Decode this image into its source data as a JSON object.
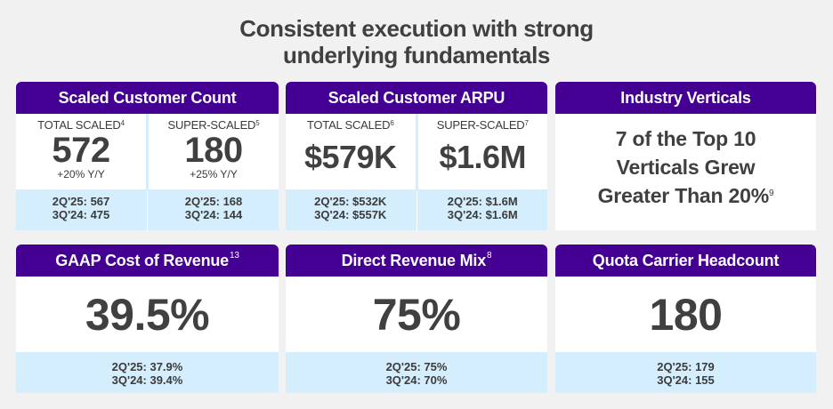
{
  "title": {
    "line1": "Consistent execution with strong",
    "line2": "underlying fundamentals"
  },
  "colors": {
    "header_purple": "#430092",
    "band_blue": "#d4eefd",
    "text_dark": "#404040",
    "background": "#f1f1f1"
  },
  "cards": {
    "scaled_count": {
      "title": "Scaled Customer Count",
      "total": {
        "label": "TOTAL SCALED",
        "footnote": "4",
        "value": "572",
        "yoy": "+20% Y/Y",
        "prior": [
          "2Q'25: 567",
          "3Q'24: 475"
        ]
      },
      "super": {
        "label": "SUPER-SCALED",
        "footnote": "5",
        "value": "180",
        "yoy": "+25% Y/Y",
        "prior": [
          "2Q'25: 168",
          "3Q'24: 144"
        ]
      }
    },
    "scaled_arpu": {
      "title": "Scaled Customer ARPU",
      "total": {
        "label": "TOTAL SCALED",
        "footnote": "6",
        "value": "$579K",
        "prior": [
          "2Q'25: $532K",
          "3Q'24: $557K"
        ]
      },
      "super": {
        "label": "SUPER-SCALED",
        "footnote": "7",
        "value": "$1.6M",
        "prior": [
          "2Q'25: $1.6M",
          "3Q'24: $1.6M"
        ]
      }
    },
    "industry_verticals": {
      "title": "Industry Verticals",
      "lines": [
        "7 of the Top 10",
        "Verticals Grew",
        "Greater Than 20%"
      ],
      "footnote": "9"
    },
    "gaap_cost": {
      "title": "GAAP Cost of Revenue",
      "footnote": "13",
      "value": "39.5%",
      "prior": [
        "2Q'25: 37.9%",
        "3Q'24: 39.4%"
      ]
    },
    "direct_mix": {
      "title": "Direct Revenue Mix",
      "footnote": "8",
      "value": "75%",
      "prior": [
        "2Q'25: 75%",
        "3Q'24: 70%"
      ]
    },
    "quota_headcount": {
      "title": "Quota Carrier Headcount",
      "value": "180",
      "prior": [
        "2Q'25: 179",
        "3Q'24: 155"
      ]
    }
  }
}
